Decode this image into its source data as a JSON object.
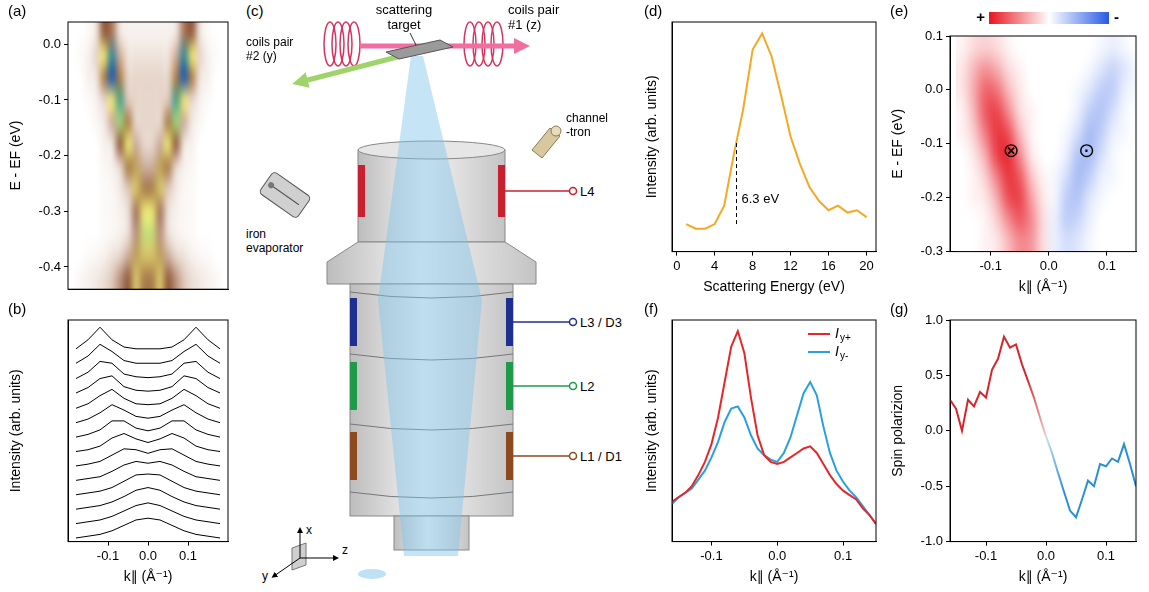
{
  "chart_data": [
    {
      "panel": "(a)",
      "type": "heatmap",
      "ylabel": "E - EF (eV)",
      "xlim": [
        -0.2,
        0.2
      ],
      "ylim": [
        -0.44,
        0.04
      ],
      "yticks": [
        -0.4,
        -0.3,
        -0.2,
        -0.1,
        {
          "value": 0,
          "label": "0.0"
        }
      ],
      "tick_labels": "y",
      "zlim": [
        0,
        1
      ],
      "x_edges": [
        -0.2,
        -0.18,
        -0.16,
        -0.14,
        -0.12,
        -0.1,
        -0.08,
        -0.06,
        -0.04,
        -0.02,
        0,
        0.02,
        0.04,
        0.06,
        0.08,
        0.1,
        0.12,
        0.14,
        0.16,
        0.18,
        0.2
      ],
      "y_edges": [
        0.04,
        0,
        -0.04,
        -0.08,
        -0.12,
        -0.16,
        -0.2,
        -0.24,
        -0.28,
        -0.32,
        -0.36,
        -0.4,
        -0.44
      ],
      "cells": [
        [
          0,
          0,
          0.02,
          0.1,
          0.4,
          0.35,
          0.1,
          0.05,
          0.05,
          0.05,
          0.05,
          0.05,
          0.05,
          0.1,
          0.35,
          0.4,
          0.1,
          0.02,
          0,
          0
        ],
        [
          0,
          0.02,
          0.05,
          0.15,
          0.6,
          0.9,
          0.25,
          0.1,
          0.1,
          0.1,
          0.1,
          0.1,
          0.1,
          0.25,
          0.9,
          0.6,
          0.15,
          0.05,
          0.02,
          0
        ],
        [
          0,
          0,
          0.05,
          0.1,
          0.45,
          1,
          0.45,
          0.15,
          0.15,
          0.15,
          0.15,
          0.15,
          0.15,
          0.45,
          1,
          0.45,
          0.1,
          0.05,
          0,
          0
        ],
        [
          0,
          0,
          0.02,
          0.05,
          0.15,
          0.6,
          0.85,
          0.2,
          0.15,
          0.15,
          0.15,
          0.15,
          0.2,
          0.85,
          0.6,
          0.15,
          0.05,
          0.02,
          0,
          0
        ],
        [
          0,
          0,
          0,
          0.03,
          0.08,
          0.25,
          0.7,
          0.45,
          0.15,
          0.15,
          0.15,
          0.15,
          0.45,
          0.7,
          0.25,
          0.08,
          0.03,
          0,
          0,
          0
        ],
        [
          0,
          0,
          0,
          0,
          0.05,
          0.1,
          0.4,
          0.6,
          0.25,
          0.15,
          0.15,
          0.25,
          0.6,
          0.4,
          0.1,
          0.05,
          0,
          0,
          0,
          0
        ],
        [
          0,
          0,
          0,
          0,
          0.03,
          0.05,
          0.15,
          0.45,
          0.5,
          0.25,
          0.25,
          0.5,
          0.45,
          0.15,
          0.05,
          0.03,
          0,
          0,
          0,
          0
        ],
        [
          0,
          0,
          0,
          0,
          0.02,
          0.03,
          0.08,
          0.2,
          0.55,
          0.45,
          0.45,
          0.55,
          0.2,
          0.08,
          0.03,
          0.02,
          0,
          0,
          0,
          0
        ],
        [
          0,
          0,
          0,
          0,
          0.02,
          0.03,
          0.05,
          0.12,
          0.35,
          0.6,
          0.6,
          0.35,
          0.12,
          0.05,
          0.03,
          0.02,
          0,
          0,
          0,
          0
        ],
        [
          0,
          0,
          0,
          0,
          0.02,
          0.03,
          0.05,
          0.12,
          0.3,
          0.65,
          0.65,
          0.3,
          0.12,
          0.05,
          0.03,
          0.02,
          0,
          0,
          0,
          0
        ],
        [
          0,
          0,
          0.02,
          0.03,
          0.05,
          0.1,
          0.15,
          0.25,
          0.5,
          0.55,
          0.55,
          0.5,
          0.25,
          0.15,
          0.1,
          0.05,
          0.03,
          0.02,
          0,
          0
        ],
        [
          0,
          0.03,
          0.05,
          0.08,
          0.12,
          0.2,
          0.3,
          0.4,
          0.55,
          0.45,
          0.45,
          0.55,
          0.4,
          0.3,
          0.2,
          0.12,
          0.08,
          0.05,
          0.03,
          0
        ]
      ]
    },
    {
      "panel": "(b)",
      "type": "line",
      "xlabel": "k∥ (Å⁻¹)",
      "ylabel": "Intensity (arb. units)",
      "xlim": [
        -0.2,
        0.2
      ],
      "xticks": [
        -0.1,
        {
          "value": 0,
          "label": "0.0"
        },
        0.1
      ],
      "ylim": [
        0,
        12.3
      ],
      "tick_labels": "x",
      "color": "#000000",
      "x": [
        -0.18,
        -0.15,
        -0.12,
        -0.09,
        -0.06,
        -0.03,
        0,
        0.03,
        0.06,
        0.09,
        0.12,
        0.15,
        0.18
      ],
      "series": [
        {
          "values": [
            0.2,
            0.3,
            0.4,
            0.6,
            0.9,
            1.2,
            1.3,
            1.2,
            0.9,
            0.6,
            0.4,
            0.3,
            0.2
          ]
        },
        {
          "values": [
            1.0,
            1.1,
            1.2,
            1.4,
            1.7,
            2.0,
            2.15,
            2.0,
            1.7,
            1.4,
            1.2,
            1.1,
            1.0
          ]
        },
        {
          "values": [
            1.8,
            1.9,
            2.0,
            2.2,
            2.5,
            2.85,
            3.0,
            2.85,
            2.5,
            2.2,
            2.0,
            1.9,
            1.8
          ]
        },
        {
          "values": [
            2.6,
            2.7,
            2.8,
            3.0,
            3.35,
            3.7,
            3.75,
            3.7,
            3.35,
            3.0,
            2.8,
            2.7,
            2.6
          ]
        },
        {
          "values": [
            3.4,
            3.5,
            3.6,
            3.9,
            4.25,
            4.45,
            4.35,
            4.45,
            4.25,
            3.9,
            3.6,
            3.5,
            3.4
          ]
        },
        {
          "values": [
            4.2,
            4.3,
            4.45,
            4.8,
            5.15,
            5.1,
            4.9,
            5.1,
            5.15,
            4.8,
            4.45,
            4.3,
            4.2
          ]
        },
        {
          "values": [
            5.0,
            5.1,
            5.3,
            5.75,
            6.0,
            5.7,
            5.5,
            5.7,
            6.0,
            5.75,
            5.3,
            5.1,
            5.0
          ]
        },
        {
          "values": [
            5.8,
            5.95,
            6.2,
            6.7,
            6.7,
            6.3,
            6.15,
            6.3,
            6.7,
            6.7,
            6.2,
            5.95,
            5.8
          ]
        },
        {
          "values": [
            6.6,
            6.8,
            7.15,
            7.6,
            7.3,
            6.95,
            6.85,
            6.95,
            7.3,
            7.6,
            7.15,
            6.8,
            6.6
          ]
        },
        {
          "values": [
            7.4,
            7.65,
            8.1,
            8.45,
            7.95,
            7.65,
            7.6,
            7.65,
            7.95,
            8.45,
            8.1,
            7.65,
            7.4
          ]
        },
        {
          "values": [
            8.25,
            8.55,
            9.05,
            9.2,
            8.6,
            8.4,
            8.35,
            8.4,
            8.6,
            9.2,
            9.05,
            8.55,
            8.25
          ]
        },
        {
          "values": [
            9.05,
            9.4,
            10.0,
            9.9,
            9.3,
            9.15,
            9.1,
            9.15,
            9.3,
            9.9,
            10.0,
            9.4,
            9.05
          ]
        },
        {
          "values": [
            9.9,
            10.3,
            10.95,
            10.55,
            10.05,
            9.9,
            9.9,
            9.9,
            10.05,
            10.55,
            10.95,
            10.3,
            9.9
          ]
        },
        {
          "values": [
            10.7,
            11.2,
            11.9,
            11.2,
            10.8,
            10.7,
            10.7,
            10.7,
            10.8,
            11.2,
            11.9,
            11.2,
            10.7
          ]
        }
      ]
    },
    {
      "panel": "(d)",
      "type": "line",
      "xlabel": "Scattering Energy (eV)",
      "ylabel": "Intensity (arb. units)",
      "xlim": [
        -0.5,
        21
      ],
      "xticks": [
        0,
        4,
        8,
        12,
        16,
        20
      ],
      "ylim": [
        0,
        1
      ],
      "tick_labels": "x",
      "color": "#f7a823",
      "x": [
        1,
        2,
        3,
        4,
        5,
        6,
        7,
        8,
        9,
        10,
        11,
        12,
        13,
        14,
        15,
        16,
        17,
        18,
        19,
        20
      ],
      "values": [
        0.12,
        0.1,
        0.1,
        0.12,
        0.2,
        0.42,
        0.62,
        0.88,
        0.95,
        0.85,
        0.68,
        0.5,
        0.38,
        0.28,
        0.22,
        0.18,
        0.2,
        0.17,
        0.18,
        0.15
      ],
      "annotation": {
        "text": "6.3 eV",
        "x": 6.3,
        "y_range": [
          0.12,
          0.48
        ]
      }
    },
    {
      "panel": "(e)",
      "type": "heatmap",
      "xlabel": "k∥ (Å⁻¹)",
      "ylabel": "E - EF (eV)",
      "xlim": [
        -0.17,
        0.15
      ],
      "xticks": [
        -0.1,
        {
          "value": 0,
          "label": "0.0"
        },
        0.1
      ],
      "ylim": [
        -0.3,
        0.1
      ],
      "yticks": [
        -0.3,
        -0.2,
        -0.1,
        {
          "value": 0,
          "label": "0.0"
        },
        0.1
      ],
      "colorbar": {
        "range": [
          1,
          -1
        ],
        "labels": [
          "+",
          "-"
        ]
      },
      "x_edges": [
        -0.16,
        -0.14,
        -0.12,
        -0.1,
        -0.08,
        -0.06,
        -0.04,
        -0.02,
        0,
        0.02,
        0.04,
        0.06,
        0.08,
        0.1,
        0.12,
        0.14,
        0.16
      ],
      "y_edges": [
        0.1,
        0.06,
        0.02,
        -0.02,
        -0.06,
        -0.1,
        -0.14,
        -0.18,
        -0.22,
        -0.26,
        -0.3
      ],
      "cells": [
        [
          0.05,
          0.15,
          0.2,
          0.15,
          0.05,
          0,
          0,
          0,
          0,
          0,
          0,
          0,
          -0.05,
          -0.1,
          -0.05,
          0
        ],
        [
          0.1,
          0.3,
          0.45,
          0.35,
          0.15,
          0.05,
          0,
          0,
          0,
          0,
          0,
          -0.05,
          -0.15,
          -0.25,
          -0.15,
          -0.05
        ],
        [
          0.1,
          0.35,
          0.65,
          0.6,
          0.3,
          0.1,
          0,
          0,
          0,
          0,
          -0.05,
          -0.15,
          -0.3,
          -0.3,
          -0.1,
          -0.05
        ],
        [
          0.05,
          0.3,
          0.7,
          0.8,
          0.5,
          0.15,
          0.05,
          0,
          0,
          0,
          -0.1,
          -0.3,
          -0.35,
          -0.2,
          -0.05,
          0
        ],
        [
          0.05,
          0.2,
          0.55,
          0.85,
          0.75,
          0.3,
          0.05,
          0,
          0,
          -0.05,
          -0.2,
          -0.4,
          -0.3,
          -0.1,
          -0.05,
          0
        ],
        [
          0,
          0.1,
          0.35,
          0.8,
          0.9,
          0.5,
          0.1,
          0,
          0,
          -0.1,
          -0.35,
          -0.4,
          -0.2,
          -0.05,
          0,
          0
        ],
        [
          0,
          0.05,
          0.2,
          0.55,
          0.85,
          0.7,
          0.25,
          0.05,
          -0.05,
          -0.2,
          -0.4,
          -0.3,
          -0.1,
          -0.05,
          0,
          0
        ],
        [
          0,
          0.05,
          0.1,
          0.35,
          0.75,
          0.8,
          0.4,
          0.1,
          -0.05,
          -0.3,
          -0.35,
          -0.15,
          -0.05,
          0,
          0,
          0
        ],
        [
          0,
          0,
          0.05,
          0.2,
          0.5,
          0.7,
          0.5,
          0.15,
          -0.1,
          -0.3,
          -0.25,
          -0.1,
          0,
          0,
          0,
          0
        ],
        [
          0,
          0,
          0.05,
          0.1,
          0.3,
          0.5,
          0.45,
          0.15,
          -0.1,
          -0.2,
          -0.15,
          -0.05,
          0,
          0,
          0,
          0
        ]
      ],
      "annotations": [
        {
          "text": "⊗",
          "x": -0.065,
          "y": -0.115
        },
        {
          "text": "⊙",
          "x": 0.065,
          "y": -0.115
        }
      ]
    },
    {
      "panel": "(f)",
      "type": "line",
      "xlabel": "k∥ (Å⁻¹)",
      "ylabel": "Intensity (arb. units)",
      "xlim": [
        -0.16,
        0.15
      ],
      "xticks": [
        -0.1,
        {
          "value": 0,
          "label": "0.0"
        },
        0.1
      ],
      "ylim": [
        0,
        1
      ],
      "tick_labels": "x",
      "legend": "upper right",
      "x": [
        -0.16,
        -0.15,
        -0.14,
        -0.13,
        -0.12,
        -0.11,
        -0.1,
        -0.09,
        -0.08,
        -0.07,
        -0.06,
        -0.05,
        -0.04,
        -0.03,
        -0.02,
        -0.01,
        0,
        0.01,
        0.02,
        0.03,
        0.04,
        0.05,
        0.06,
        0.07,
        0.08,
        0.09,
        0.1,
        0.11,
        0.12,
        0.13,
        0.14,
        0.15
      ],
      "series": [
        {
          "name": "Iy+",
          "color": "#e8262a",
          "values": [
            0.18,
            0.2,
            0.22,
            0.25,
            0.3,
            0.36,
            0.44,
            0.56,
            0.72,
            0.88,
            0.95,
            0.85,
            0.65,
            0.48,
            0.39,
            0.36,
            0.35,
            0.36,
            0.38,
            0.4,
            0.42,
            0.43,
            0.4,
            0.35,
            0.3,
            0.26,
            0.23,
            0.21,
            0.19,
            0.15,
            0.12,
            0.08
          ]
        },
        {
          "name": "Iy-",
          "color": "#2a9fe0",
          "values": [
            0.17,
            0.2,
            0.22,
            0.24,
            0.28,
            0.32,
            0.38,
            0.45,
            0.54,
            0.6,
            0.61,
            0.56,
            0.48,
            0.42,
            0.39,
            0.37,
            0.36,
            0.4,
            0.47,
            0.57,
            0.67,
            0.72,
            0.66,
            0.52,
            0.4,
            0.32,
            0.27,
            0.23,
            0.2,
            0.16,
            0.12,
            0.08
          ]
        }
      ]
    },
    {
      "panel": "(g)",
      "type": "line",
      "ylabel": "Spin polarizion",
      "xlabel": "k∥ (Å⁻¹)",
      "xlim": [
        -0.16,
        0.15
      ],
      "xticks": [
        -0.1,
        {
          "value": 0,
          "label": "0.0"
        },
        0.1
      ],
      "ylim": [
        -1,
        1
      ],
      "yticks": [
        {
          "value": -1,
          "label": "-1.0"
        },
        -0.5,
        {
          "value": 0,
          "label": "0.0"
        },
        0.5,
        {
          "value": 1,
          "label": "1.0"
        }
      ],
      "series": [
        {
          "color": "#d6262b",
          "x": [
            -0.16,
            -0.15,
            -0.14,
            -0.13,
            -0.12,
            -0.11,
            -0.1,
            -0.09,
            -0.08,
            -0.07,
            -0.06,
            -0.05,
            -0.04,
            -0.03,
            -0.02,
            -0.01,
            0
          ],
          "values": [
            0.28,
            0.2,
            0,
            0.28,
            0.22,
            0.35,
            0.3,
            0.55,
            0.65,
            0.85,
            0.75,
            0.78,
            0.6,
            0.45,
            0.3,
            0.12,
            -0.05
          ]
        },
        {
          "color": "#2a8fd6",
          "x": [
            0,
            0.01,
            0.02,
            0.03,
            0.04,
            0.05,
            0.06,
            0.07,
            0.08,
            0.09,
            0.1,
            0.11,
            0.12,
            0.13,
            0.14,
            0.15
          ],
          "values": [
            -0.05,
            -0.2,
            -0.38,
            -0.55,
            -0.72,
            -0.78,
            -0.62,
            -0.45,
            -0.5,
            -0.3,
            -0.32,
            -0.25,
            -0.28,
            -0.12,
            -0.3,
            -0.5
          ]
        }
      ]
    }
  ],
  "diagram": {
    "panel": "(c)",
    "scattering_target": "scattering target",
    "coils_z": "coils pair #1 (z)",
    "coils_y": "coils pair #2 (y)",
    "channeltron": "channel -tron",
    "evaporator": "iron evaporator",
    "lenses": [
      "L4",
      "L3 / D3",
      "L2",
      "L1 / D1"
    ],
    "axes": [
      "x",
      "y",
      "z"
    ]
  }
}
